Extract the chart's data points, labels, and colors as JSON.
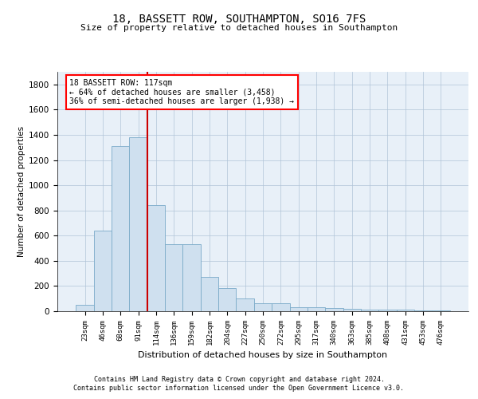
{
  "title1": "18, BASSETT ROW, SOUTHAMPTON, SO16 7FS",
  "title2": "Size of property relative to detached houses in Southampton",
  "xlabel": "Distribution of detached houses by size in Southampton",
  "ylabel": "Number of detached properties",
  "categories": [
    "23sqm",
    "46sqm",
    "68sqm",
    "91sqm",
    "114sqm",
    "136sqm",
    "159sqm",
    "182sqm",
    "204sqm",
    "227sqm",
    "250sqm",
    "272sqm",
    "295sqm",
    "317sqm",
    "340sqm",
    "363sqm",
    "385sqm",
    "408sqm",
    "431sqm",
    "453sqm",
    "476sqm"
  ],
  "values": [
    50,
    640,
    1310,
    1380,
    840,
    530,
    530,
    270,
    185,
    100,
    65,
    65,
    30,
    30,
    25,
    20,
    10,
    10,
    10,
    8,
    5
  ],
  "bar_color": "#cfe0ef",
  "bar_edge_color": "#7aaac8",
  "vline_color": "#cc0000",
  "annotation_title": "18 BASSETT ROW: 117sqm",
  "annotation_line1": "← 64% of detached houses are smaller (3,458)",
  "annotation_line2": "36% of semi-detached houses are larger (1,938) →",
  "ylim": [
    0,
    1900
  ],
  "yticks": [
    0,
    200,
    400,
    600,
    800,
    1000,
    1200,
    1400,
    1600,
    1800
  ],
  "footer1": "Contains HM Land Registry data © Crown copyright and database right 2024.",
  "footer2": "Contains public sector information licensed under the Open Government Licence v3.0.",
  "plot_bg_color": "#ffffff",
  "axes_bg_color": "#e8f0f8",
  "grid_color": "#b0c4d8",
  "vline_xindex": 4
}
